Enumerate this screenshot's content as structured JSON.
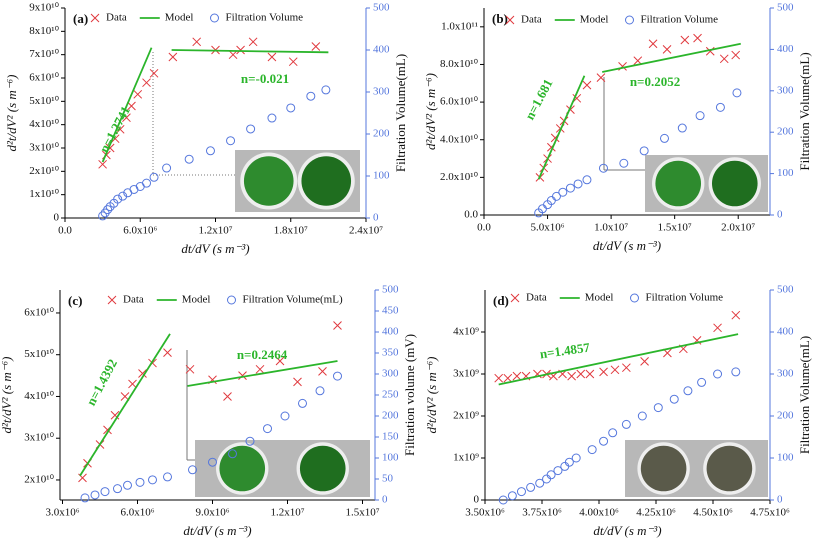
{
  "chart_data": [
    {
      "type": "scatter",
      "label": "(a)",
      "xlabel": "dt/dV (s m⁻³)",
      "ylabel": "d²t/dV² (s m⁻⁶)",
      "y2label": "Filtration Volume(mL)",
      "xlim": [
        0,
        24000000.0
      ],
      "xticks": [
        {
          "value": 0,
          "label": "0.0"
        },
        {
          "value": 6000000.0,
          "label": "6.0x10⁶"
        },
        {
          "value": 12000000.0,
          "label": "1.2x10⁷"
        },
        {
          "value": 18000000.0,
          "label": "1.8x10⁷"
        },
        {
          "value": 24000000.0,
          "label": "2.4x10⁷"
        }
      ],
      "ylim": [
        0,
        90000000000.0
      ],
      "yticks": [
        0,
        {
          "value": 10000000000.0,
          "label": "1x10¹⁰"
        },
        {
          "value": 20000000000.0,
          "label": "2x10¹⁰"
        },
        {
          "value": 30000000000.0,
          "label": "3x10¹⁰"
        },
        {
          "value": 40000000000.0,
          "label": "4x10¹⁰"
        },
        {
          "value": 50000000000.0,
          "label": "5x10¹⁰"
        },
        {
          "value": 60000000000.0,
          "label": "6x10¹⁰"
        },
        {
          "value": 70000000000.0,
          "label": "7x10¹⁰"
        },
        {
          "value": 80000000000.0,
          "label": "8x10¹⁰"
        },
        {
          "value": 90000000000.0,
          "label": "9x10¹⁰"
        }
      ],
      "y2lim": [
        0,
        500
      ],
      "y2ticks": [
        0,
        100,
        200,
        300,
        400,
        500
      ],
      "annotations": [
        "n=1.2741",
        "n=-0.021"
      ],
      "series": [
        {
          "name": "Data",
          "color": "#e0393e",
          "marker": "x",
          "x": [
            3000000.0,
            3300000.0,
            3600000.0,
            4000000.0,
            4400000.0,
            4900000.0,
            5300000.0,
            5800000.0,
            6500000.0,
            7100000.0,
            8600000.0,
            10500000.0,
            12000000.0,
            13400000.0,
            14000000.0,
            15000000.0,
            16500000.0,
            18200000.0,
            20000000.0
          ],
          "values": [
            23000000000.0,
            27000000000.0,
            30000000000.0,
            34000000000.0,
            38000000000.0,
            43000000000.0,
            48000000000.0,
            53000000000.0,
            58000000000.0,
            62000000000.0,
            69000000000.0,
            75500000000.0,
            72000000000.0,
            70000000000.0,
            72000000000.0,
            75500000000.0,
            69000000000.0,
            67000000000.0,
            73500000000.0
          ]
        },
        {
          "name": "Model",
          "color": "#2bb52b",
          "marker": "line",
          "segments": [
            {
              "x": [
                3000000.0,
                6900000.0
              ],
              "values": [
                24000000000.0,
                73000000000.0
              ]
            },
            {
              "x": [
                8500000.0,
                21000000.0
              ],
              "values": [
                72000000000.0,
                71000000000.0
              ]
            }
          ]
        },
        {
          "name": "Filtration Volume",
          "color": "#5577dd",
          "marker": "circle",
          "axis": "y2",
          "x": [
            3000000.0,
            3200000.0,
            3400000.0,
            3600000.0,
            3900000.0,
            4200000.0,
            4600000.0,
            5000000.0,
            5500000.0,
            6000000.0,
            6500000.0,
            7100000.0,
            8100000.0,
            9900000.0,
            11600000.0,
            13200000.0,
            14800000.0,
            16500000.0,
            18000000.0,
            19600000.0,
            20800000.0
          ],
          "values": [
            5,
            12,
            20,
            27,
            35,
            45,
            52,
            60,
            68,
            75,
            83,
            97,
            119,
            140,
            160,
            184,
            212,
            238,
            262,
            290,
            305
          ]
        }
      ]
    },
    {
      "type": "scatter",
      "label": "(b)",
      "xlabel": "dt/dV (s m⁻³)",
      "ylabel": "d²t/dV² (s m⁻⁶)",
      "y2label": "Filtration Volume(mL)",
      "xlim": [
        0,
        22500000.0
      ],
      "xticks": [
        {
          "value": 0,
          "label": "0.0"
        },
        {
          "value": 5000000.0,
          "label": "5.0x10⁶"
        },
        {
          "value": 10000000.0,
          "label": "1.0x10⁷"
        },
        {
          "value": 15000000.0,
          "label": "1.5x10⁷"
        },
        {
          "value": 20000000.0,
          "label": "2.0x10⁷"
        }
      ],
      "ylim": [
        0,
        110000000000.0
      ],
      "yticks": [
        {
          "value": 0,
          "label": "0.0"
        },
        {
          "value": 20000000000.0,
          "label": "2.0x10¹⁰"
        },
        {
          "value": 40000000000.0,
          "label": "4.0x10¹⁰"
        },
        {
          "value": 60000000000.0,
          "label": "6.0x10¹⁰"
        },
        {
          "value": 80000000000.0,
          "label": "8.0x10¹⁰"
        },
        {
          "value": 100000000000.0,
          "label": "1.0x10¹¹"
        }
      ],
      "y2lim": [
        0,
        500
      ],
      "y2ticks": [
        0,
        100,
        200,
        300,
        400,
        500
      ],
      "annotations": [
        "n=1.681",
        "n=0.2052"
      ],
      "series": [
        {
          "name": "Data",
          "color": "#e0393e",
          "marker": "x",
          "x": [
            4400000.0,
            4700000.0,
            5000000.0,
            5300000.0,
            5600000.0,
            6000000.0,
            6300000.0,
            6800000.0,
            7300000.0,
            8100000.0,
            9200000.0,
            10900000.0,
            12100000.0,
            13300000.0,
            14400000.0,
            15800000.0,
            16800000.0,
            17800000.0,
            18900000.0,
            19800000.0
          ],
          "values": [
            20000000000.0,
            25000000000.0,
            30000000000.0,
            36000000000.0,
            41000000000.0,
            46000000000.0,
            50000000000.0,
            56000000000.0,
            62000000000.0,
            69000000000.0,
            73000000000.0,
            79000000000.0,
            82000000000.0,
            91000000000.0,
            88000000000.0,
            93000000000.0,
            94000000000.0,
            87000000000.0,
            83000000000.0,
            85000000000.0
          ]
        },
        {
          "name": "Model",
          "color": "#2bb52b",
          "marker": "line",
          "segments": [
            {
              "x": [
                4300000.0,
                7900000.0
              ],
              "values": [
                19000000000.0,
                74000000000.0
              ]
            },
            {
              "x": [
                9300000.0,
                20200000.0
              ],
              "values": [
                76000000000.0,
                91000000000.0
              ]
            }
          ]
        },
        {
          "name": "Filtration Volume",
          "color": "#5577dd",
          "marker": "circle",
          "axis": "y2",
          "x": [
            4300000.0,
            4600000.0,
            5000000.0,
            5300000.0,
            5700000.0,
            6200000.0,
            6800000.0,
            7400000.0,
            8100000.0,
            9400000.0,
            11000000.0,
            12600000.0,
            14200000.0,
            15600000.0,
            17000000.0,
            18600000.0,
            19900000.0
          ],
          "values": [
            5,
            15,
            25,
            35,
            45,
            55,
            65,
            75,
            85,
            113,
            125,
            155,
            185,
            210,
            240,
            260,
            295
          ]
        }
      ]
    },
    {
      "type": "scatter",
      "label": "(c)",
      "xlabel": "dt/dV (s m⁻³)",
      "ylabel": "d²t/dV² (s m⁻⁶)",
      "y2label": "Filtration volume (mV)",
      "xlim": [
        2900000.0,
        15500000.0
      ],
      "xticks": [
        {
          "value": 3000000.0,
          "label": "3.0x10⁶"
        },
        {
          "value": 6000000.0,
          "label": "6.0x10⁶"
        },
        {
          "value": 9000000.0,
          "label": "9.0x10⁶"
        },
        {
          "value": 12000000.0,
          "label": "1.2x10⁷"
        },
        {
          "value": 15000000.0,
          "label": "1.5x10⁷"
        }
      ],
      "ylim": [
        15200000000.0,
        65500000000.0
      ],
      "yticks": [
        {
          "value": 20000000000.0,
          "label": "2x10¹⁰"
        },
        {
          "value": 30000000000.0,
          "label": "3x10¹⁰"
        },
        {
          "value": 40000000000.0,
          "label": "4x10¹⁰"
        },
        {
          "value": 50000000000.0,
          "label": "5x10¹⁰"
        },
        {
          "value": 60000000000.0,
          "label": "6x10¹⁰"
        }
      ],
      "y2lim": [
        0,
        500
      ],
      "y2ticks": [
        0,
        50,
        100,
        150,
        200,
        250,
        300,
        350,
        400,
        450,
        500
      ],
      "annotations": [
        "n=1.4392",
        "n=0.2464"
      ],
      "series": [
        {
          "name": "Data",
          "color": "#e0393e",
          "marker": "x",
          "x": [
            3800000.0,
            4000000.0,
            4500000.0,
            4800000.0,
            5100000.0,
            5500000.0,
            5800000.0,
            6200000.0,
            6600000.0,
            7200000.0,
            8100000.0,
            9000000.0,
            9600000.0,
            10200000.0,
            10900000.0,
            11700000.0,
            12400000.0,
            13400000.0,
            14000000.0
          ],
          "values": [
            20500000000.0,
            24000000000.0,
            28500000000.0,
            32000000000.0,
            35500000000.0,
            40000000000.0,
            43000000000.0,
            45500000000.0,
            48000000000.0,
            50500000000.0,
            46500000000.0,
            44000000000.0,
            40000000000.0,
            45000000000.0,
            46500000000.0,
            48500000000.0,
            43500000000.0,
            46000000000.0,
            57000000000.0
          ]
        },
        {
          "name": "Model",
          "color": "#2bb52b",
          "marker": "line",
          "segments": [
            {
              "x": [
                3700000.0,
                7300000.0
              ],
              "values": [
                21000000000.0,
                55000000000.0
              ]
            },
            {
              "x": [
                8000000.0,
                14000000.0
              ],
              "values": [
                42500000000.0,
                48500000000.0
              ]
            }
          ]
        },
        {
          "name": "Filtration Volume(mL)",
          "color": "#5577dd",
          "marker": "circle",
          "axis": "y2",
          "x": [
            3900000.0,
            4300000.0,
            4700000.0,
            5200000.0,
            5600000.0,
            6100000.0,
            6600000.0,
            7200000.0,
            8200000.0,
            9000000.0,
            9800000.0,
            10500000.0,
            11200000.0,
            11900000.0,
            12600000.0,
            13300000.0,
            14000000.0
          ],
          "values": [
            5,
            12,
            20,
            27,
            35,
            42,
            48,
            55,
            72,
            90,
            110,
            140,
            170,
            200,
            230,
            260,
            295
          ]
        }
      ]
    },
    {
      "type": "scatter",
      "label": "(d)",
      "xlabel": "dt/dV (s m⁻³)",
      "ylabel": "d²t/dV² (s m⁻⁶)",
      "y2label": "Filtration Volume(mL)",
      "xlim": [
        3500000.0,
        4750000.0
      ],
      "xticks": [
        {
          "value": 3500000.0,
          "label": "3.50x10⁶"
        },
        {
          "value": 3750000.0,
          "label": "3.75x10⁶"
        },
        {
          "value": 4000000.0,
          "label": "4.00x10⁶"
        },
        {
          "value": 4250000.0,
          "label": "4.25x10⁶"
        },
        {
          "value": 4500000.0,
          "label": "4.50x10⁶"
        },
        {
          "value": 4750000.0,
          "label": "4.75x10⁶"
        }
      ],
      "ylim": [
        0,
        5000000000.0
      ],
      "yticks": [
        0,
        {
          "value": 1000000000.0,
          "label": "1x10⁹"
        },
        {
          "value": 2000000000.0,
          "label": "2x10⁹"
        },
        {
          "value": 3000000000.0,
          "label": "3x10⁹"
        },
        {
          "value": 4000000000.0,
          "label": "4x10⁹"
        }
      ],
      "y2lim": [
        0,
        500
      ],
      "y2ticks": [
        0,
        100,
        200,
        300,
        400,
        500
      ],
      "annotations": [
        "n=1.4857"
      ],
      "series": [
        {
          "name": "Data",
          "color": "#e0393e",
          "marker": "x",
          "x": [
            3560000.0,
            3600000.0,
            3640000.0,
            3680000.0,
            3730000.0,
            3770000.0,
            3800000.0,
            3840000.0,
            3880000.0,
            3920000.0,
            3960000.0,
            4020000.0,
            4070000.0,
            4120000.0,
            4200000.0,
            4300000.0,
            4370000.0,
            4430000.0,
            4520000.0,
            4600000.0
          ],
          "values": [
            2900000000.0,
            2900000000.0,
            2950000000.0,
            2950000000.0,
            3000000000.0,
            3000000000.0,
            2950000000.0,
            3000000000.0,
            2950000000.0,
            3000000000.0,
            3000000000.0,
            3050000000.0,
            3100000000.0,
            3150000000.0,
            3300000000.0,
            3500000000.0,
            3600000000.0,
            3800000000.0,
            4100000000.0,
            4400000000.0
          ]
        },
        {
          "name": "Model",
          "color": "#2bb52b",
          "marker": "line",
          "segments": [
            {
              "x": [
                3560000.0,
                4610000.0
              ],
              "values": [
                2750000000.0,
                3950000000.0
              ]
            }
          ]
        },
        {
          "name": "Filtration Volume",
          "color": "#5577dd",
          "marker": "circle",
          "axis": "y2",
          "x": [
            3580000.0,
            3620000.0,
            3660000.0,
            3700000.0,
            3740000.0,
            3770000.0,
            3790000.0,
            3820000.0,
            3850000.0,
            3870000.0,
            3900000.0,
            3970000.0,
            4020000.0,
            4060000.0,
            4120000.0,
            4190000.0,
            4260000.0,
            4330000.0,
            4390000.0,
            4450000.0,
            4520000.0,
            4600000.0
          ],
          "values": [
            0,
            10,
            20,
            30,
            40,
            50,
            60,
            70,
            80,
            90,
            100,
            120,
            140,
            160,
            180,
            200,
            220,
            240,
            260,
            280,
            300,
            305
          ]
        }
      ]
    }
  ]
}
